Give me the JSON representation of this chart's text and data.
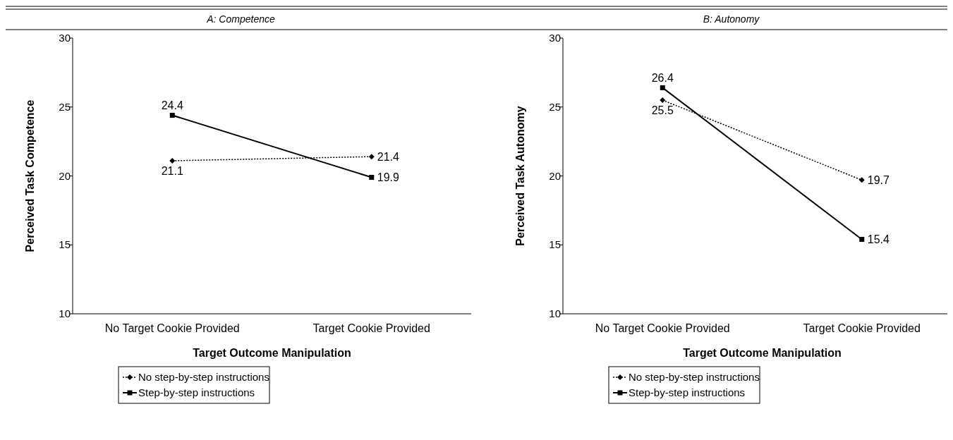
{
  "chart_data": [
    {
      "type": "line",
      "title": "A: Competence",
      "xlabel": "Target Outcome Manipulation",
      "ylabel": "Perceived Task Competence",
      "categories": [
        "No Target Cookie Provided",
        "Target Cookie Provided"
      ],
      "ylim": [
        10,
        30
      ],
      "yticks": [
        10,
        15,
        20,
        25,
        30
      ],
      "grid": false,
      "legend": "bottom",
      "data_labels": true,
      "series": [
        {
          "name": "No step-by-step instructions",
          "color": "#000000",
          "values": [
            21.1,
            21.4
          ],
          "marker": "diamond",
          "line_style": "dotted"
        },
        {
          "name": "Step-by-step instructions",
          "color": "#000000",
          "values": [
            24.4,
            19.9
          ],
          "marker": "square",
          "line_style": "solid"
        }
      ]
    },
    {
      "type": "line",
      "title": "B: Autonomy",
      "xlabel": "Target Outcome Manipulation",
      "ylabel": "Perceived Task Autonomy",
      "categories": [
        "No Target Cookie Provided",
        "Target Cookie Provided"
      ],
      "ylim": [
        10,
        30
      ],
      "yticks": [
        10,
        15,
        20,
        25,
        30
      ],
      "grid": false,
      "legend": "bottom",
      "data_labels": true,
      "series": [
        {
          "name": "No step-by-step instructions",
          "color": "#000000",
          "values": [
            25.5,
            19.7
          ],
          "marker": "diamond",
          "line_style": "dotted"
        },
        {
          "name": "Step-by-step instructions",
          "color": "#000000",
          "values": [
            26.4,
            15.4
          ],
          "marker": "square",
          "line_style": "solid"
        }
      ]
    }
  ]
}
